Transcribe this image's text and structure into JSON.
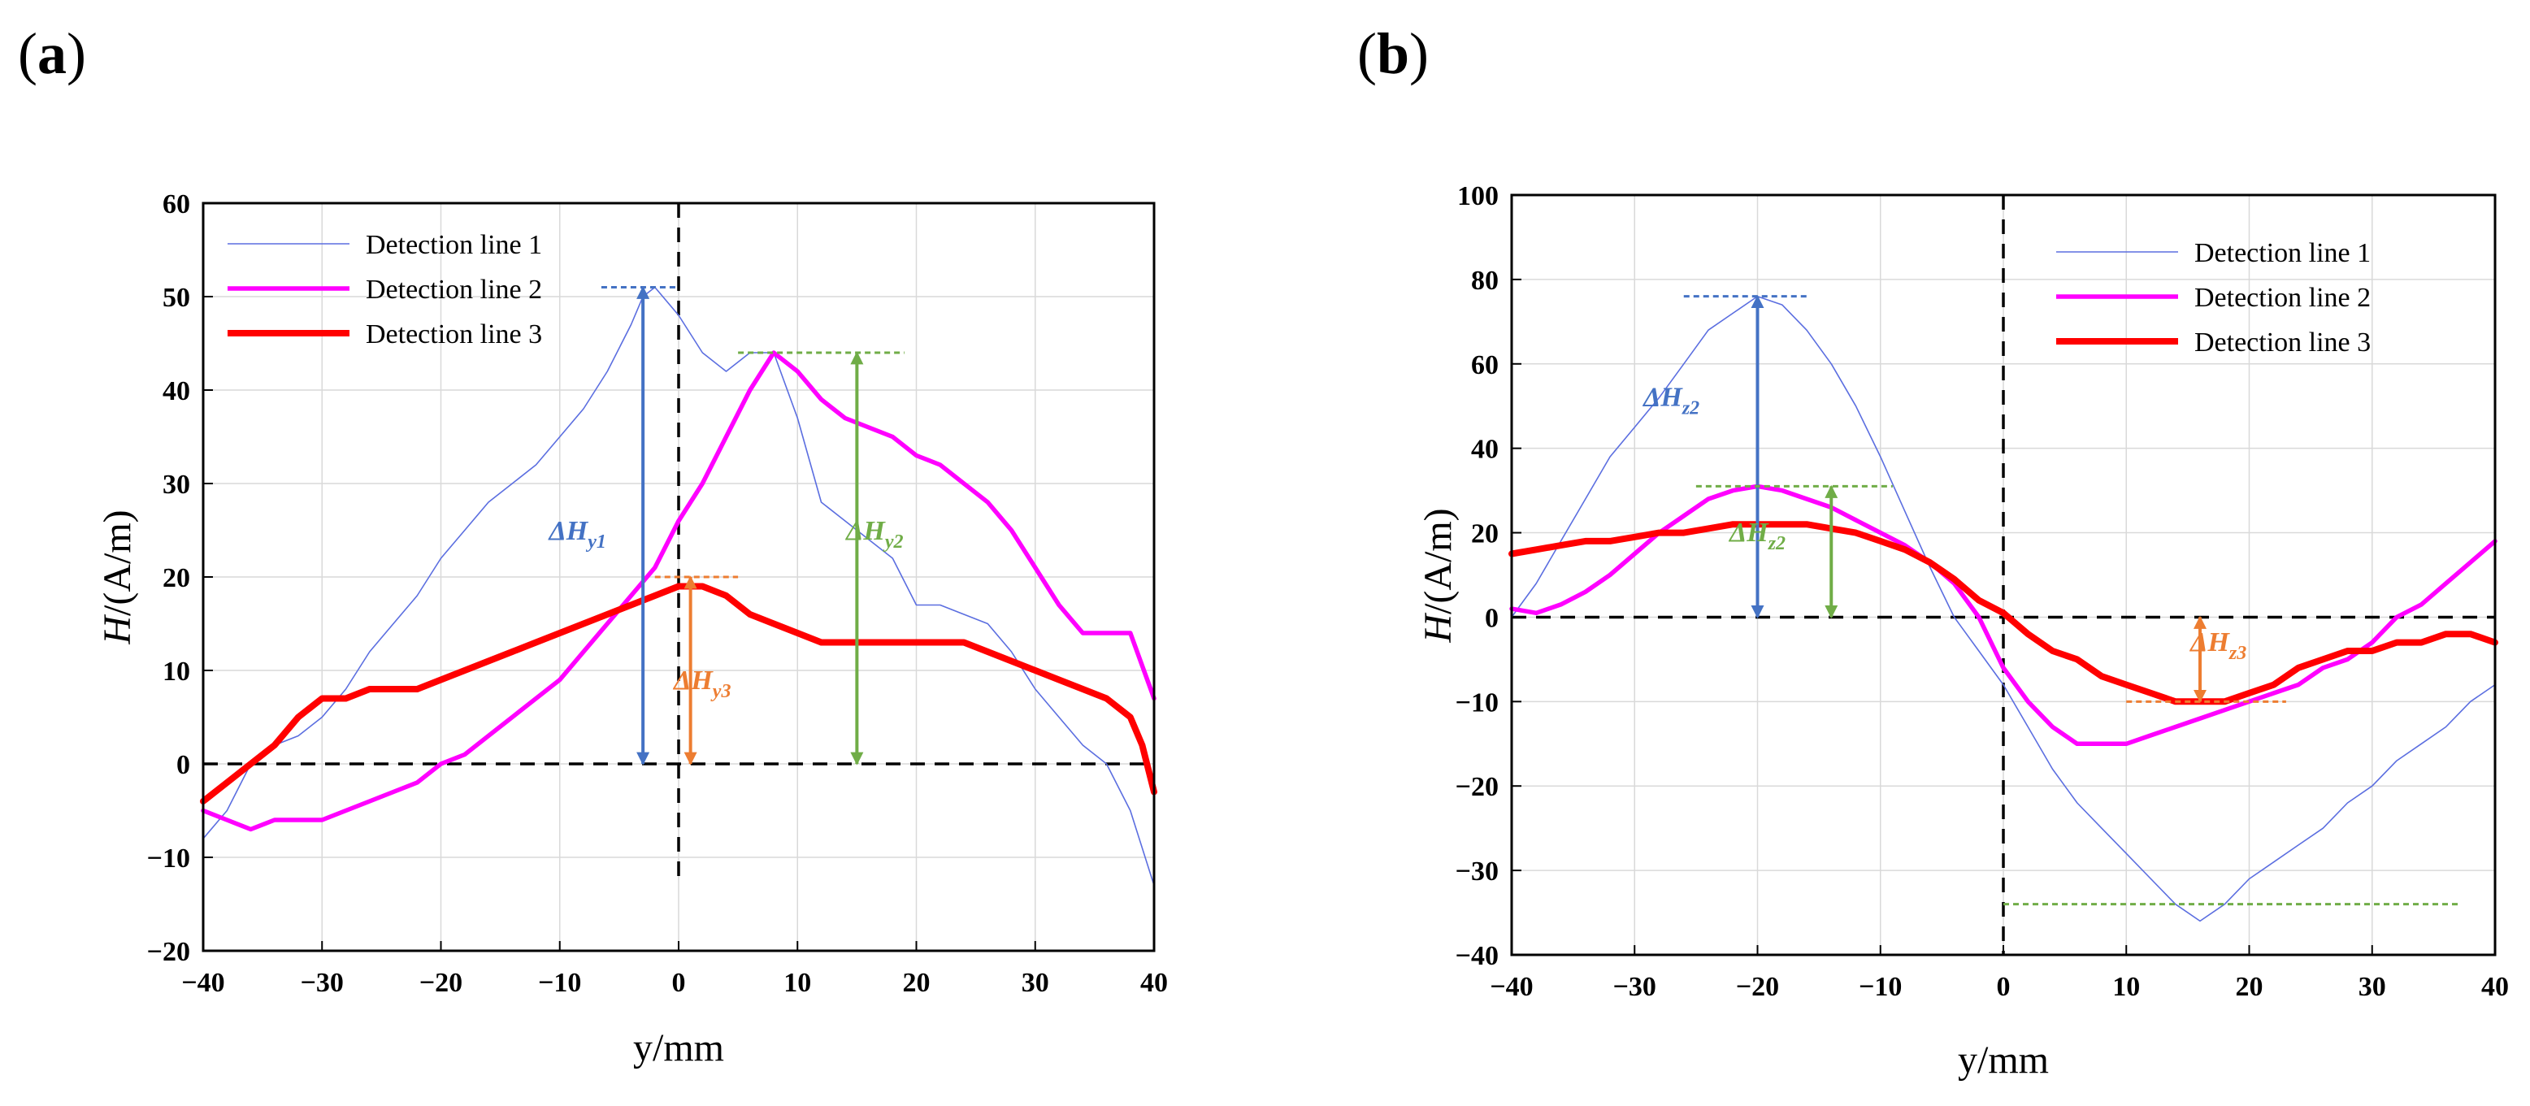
{
  "chart_data": [
    {
      "type": "line",
      "panel": "a",
      "panel_label": [
        "(",
        "a",
        ")"
      ],
      "xlabel": "y/mm",
      "ylabel": "H/(A/m)",
      "ylabel_parts": [
        "H",
        "/(A/m)"
      ],
      "xlim": [
        -40,
        40
      ],
      "ylim": [
        -20,
        60
      ],
      "xticks": [
        -40,
        -30,
        -20,
        -10,
        0,
        10,
        20,
        30,
        40
      ],
      "yticks": [
        -20,
        -10,
        0,
        10,
        20,
        30,
        40,
        50,
        60
      ],
      "xtick_labels": [
        "−40",
        "−30",
        "−20",
        "−10",
        "0",
        "10",
        "20",
        "30",
        "40"
      ],
      "ytick_labels": [
        "−20",
        "−10",
        "0",
        "10",
        "20",
        "30",
        "40",
        "50",
        "60"
      ],
      "grid": true,
      "legend_position": "top-left",
      "series": [
        {
          "name": "Detection line 1",
          "color": "#5b6ee0",
          "width": "thin",
          "x": [
            -40,
            -38,
            -36,
            -34,
            -32,
            -30,
            -28,
            -26,
            -24,
            -22,
            -20,
            -18,
            -16,
            -14,
            -12,
            -10,
            -8,
            -6,
            -4,
            -3,
            -2,
            0,
            2,
            4,
            6,
            8,
            10,
            12,
            14,
            16,
            18,
            20,
            22,
            24,
            26,
            28,
            30,
            32,
            34,
            36,
            38,
            40
          ],
          "y": [
            -8,
            -5,
            0,
            2,
            3,
            5,
            8,
            12,
            15,
            18,
            22,
            25,
            28,
            30,
            32,
            35,
            38,
            42,
            47,
            50,
            51,
            48,
            44,
            42,
            44,
            44,
            37,
            28,
            26,
            24,
            22,
            17,
            17,
            16,
            15,
            12,
            8,
            5,
            2,
            0,
            -5,
            -13
          ]
        },
        {
          "name": "Detection line 2",
          "color": "#ff00ff",
          "width": "medium",
          "x": [
            -40,
            -38,
            -36,
            -34,
            -32,
            -30,
            -28,
            -26,
            -24,
            -22,
            -20,
            -18,
            -16,
            -14,
            -12,
            -10,
            -8,
            -6,
            -4,
            -2,
            0,
            2,
            4,
            6,
            8,
            10,
            12,
            14,
            16,
            18,
            20,
            22,
            24,
            26,
            28,
            30,
            32,
            34,
            36,
            38,
            40
          ],
          "y": [
            -5,
            -6,
            -7,
            -6,
            -6,
            -6,
            -5,
            -4,
            -3,
            -2,
            0,
            1,
            3,
            5,
            7,
            9,
            12,
            15,
            18,
            21,
            26,
            30,
            35,
            40,
            44,
            42,
            39,
            37,
            36,
            35,
            33,
            32,
            30,
            28,
            25,
            21,
            17,
            14,
            14,
            14,
            7
          ]
        },
        {
          "name": "Detection line 3",
          "color": "#ff0000",
          "width": "thick",
          "x": [
            -40,
            -38,
            -36,
            -34,
            -32,
            -30,
            -28,
            -26,
            -24,
            -22,
            -20,
            -18,
            -16,
            -14,
            -12,
            -10,
            -8,
            -6,
            -4,
            -2,
            0,
            2,
            4,
            6,
            8,
            10,
            12,
            14,
            16,
            18,
            20,
            22,
            24,
            26,
            28,
            30,
            32,
            34,
            36,
            38,
            39,
            40
          ],
          "y": [
            -4,
            -2,
            0,
            2,
            5,
            7,
            7,
            8,
            8,
            8,
            9,
            10,
            11,
            12,
            13,
            14,
            15,
            16,
            17,
            18,
            19,
            19,
            18,
            16,
            15,
            14,
            13,
            13,
            13,
            13,
            13,
            13,
            13,
            12,
            11,
            10,
            9,
            8,
            7,
            5,
            2,
            -3
          ]
        }
      ],
      "annotations": [
        {
          "label": "ΔH",
          "sub": "y1",
          "color": "#4472c4",
          "x": -3,
          "y_from": 0,
          "y_to": 51,
          "line_x": [
            -6.5,
            0
          ],
          "label_x": -8.5,
          "label_y": 24
        },
        {
          "label": "ΔH",
          "sub": "y2",
          "color": "#70ad47",
          "x": 15,
          "y_from": 0,
          "y_to": 44,
          "line_x": [
            5,
            19
          ],
          "label_x": 16.5,
          "label_y": 24
        },
        {
          "label": "ΔH",
          "sub": "y3",
          "color": "#ed7d31",
          "x": 1,
          "y_from": 0,
          "y_to": 20,
          "line_x": [
            -2,
            5
          ],
          "label_x": 2,
          "label_y": 8
        }
      ]
    },
    {
      "type": "line",
      "panel": "b",
      "panel_label": [
        "(",
        "b",
        ")"
      ],
      "xlabel": "y/mm",
      "ylabel": "H/(A/m)",
      "ylabel_parts": [
        "H",
        "/(A/m)"
      ],
      "xlim": [
        -40,
        40
      ],
      "ylim": [
        -40,
        100
      ],
      "xticks": [
        -40,
        -30,
        -20,
        -10,
        0,
        10,
        20,
        30,
        40
      ],
      "yticks": [
        -40,
        -30,
        -20,
        -10,
        0,
        20,
        40,
        60,
        80,
        100
      ],
      "xtick_labels": [
        "−40",
        "−30",
        "−20",
        "−10",
        "0",
        "10",
        "20",
        "30",
        "40"
      ],
      "ytick_labels": [
        "−40",
        "−30",
        "−20",
        "−10",
        "0",
        "20",
        "40",
        "60",
        "80",
        "100"
      ],
      "grid": true,
      "legend_position": "top-right",
      "series": [
        {
          "name": "Detection line 1",
          "color": "#5b6ee0",
          "width": "thin",
          "x": [
            -40,
            -38,
            -36,
            -34,
            -32,
            -30,
            -28,
            -26,
            -24,
            -22,
            -20,
            -18,
            -16,
            -14,
            -12,
            -10,
            -8,
            -6,
            -4,
            -2,
            0,
            2,
            4,
            6,
            8,
            10,
            12,
            14,
            16,
            18,
            20,
            22,
            24,
            26,
            28,
            30,
            32,
            34,
            36,
            38,
            40
          ],
          "y": [
            0,
            8,
            18,
            28,
            38,
            45,
            52,
            60,
            68,
            72,
            76,
            74,
            68,
            60,
            50,
            38,
            25,
            12,
            0,
            -4,
            -8,
            -13,
            -18,
            -22,
            -25,
            -28,
            -31,
            -34,
            -36,
            -34,
            -31,
            -29,
            -27,
            -25,
            -22,
            -20,
            -17,
            -15,
            -13,
            -10,
            -8
          ]
        },
        {
          "name": "Detection line 2",
          "color": "#ff00ff",
          "width": "medium",
          "x": [
            -40,
            -38,
            -36,
            -34,
            -32,
            -30,
            -28,
            -26,
            -24,
            -22,
            -20,
            -18,
            -16,
            -14,
            -12,
            -10,
            -8,
            -6,
            -4,
            -2,
            0,
            2,
            4,
            6,
            8,
            10,
            12,
            14,
            16,
            18,
            20,
            22,
            24,
            26,
            28,
            30,
            32,
            34,
            36,
            38,
            40
          ],
          "y": [
            2,
            1,
            3,
            6,
            10,
            15,
            20,
            24,
            28,
            30,
            31,
            30,
            28,
            26,
            23,
            20,
            17,
            13,
            8,
            0,
            -6,
            -10,
            -13,
            -15,
            -15,
            -15,
            -14,
            -13,
            -12,
            -11,
            -10,
            -9,
            -8,
            -6,
            -5,
            -3,
            0,
            3,
            8,
            13,
            18
          ]
        },
        {
          "name": "Detection line 3",
          "color": "#ff0000",
          "width": "thick",
          "x": [
            -40,
            -38,
            -36,
            -34,
            -32,
            -30,
            -28,
            -26,
            -24,
            -22,
            -20,
            -18,
            -16,
            -14,
            -12,
            -10,
            -8,
            -6,
            -4,
            -2,
            0,
            2,
            4,
            6,
            8,
            10,
            12,
            14,
            16,
            18,
            20,
            22,
            24,
            26,
            28,
            30,
            32,
            34,
            36,
            38,
            40
          ],
          "y": [
            15,
            16,
            17,
            18,
            18,
            19,
            20,
            20,
            21,
            22,
            22,
            22,
            22,
            21,
            20,
            18,
            16,
            13,
            9,
            4,
            1,
            -2,
            -4,
            -5,
            -7,
            -8,
            -9,
            -10,
            -10,
            -10,
            -9,
            -8,
            -6,
            -5,
            -4,
            -4,
            -3,
            -3,
            -2,
            -2,
            -3
          ]
        }
      ],
      "annotations": [
        {
          "label": "ΔH",
          "sub": "z2",
          "color": "#4472c4",
          "x": -20,
          "y_from": 0,
          "y_to": 76,
          "line_x": [
            -26,
            -16
          ],
          "label_x": -27,
          "label_y": 50
        },
        {
          "label": "ΔH",
          "sub": "z2",
          "color": "#70ad47",
          "x": -14,
          "y_from": 0,
          "y_to": 31,
          "line_x": [
            -25,
            -9
          ],
          "label_x": -20,
          "label_y": 18
        },
        {
          "label": "ΔH",
          "sub": "z3",
          "color": "#ed7d31",
          "x": 16,
          "y_from": -10,
          "y_to": 0,
          "line_x": [
            10,
            23
          ],
          "label_x": 17.5,
          "label_y": -4
        }
      ],
      "extra_lines": [
        {
          "color": "#70ad47",
          "y": -34,
          "x_range": [
            0,
            37
          ]
        }
      ]
    }
  ]
}
